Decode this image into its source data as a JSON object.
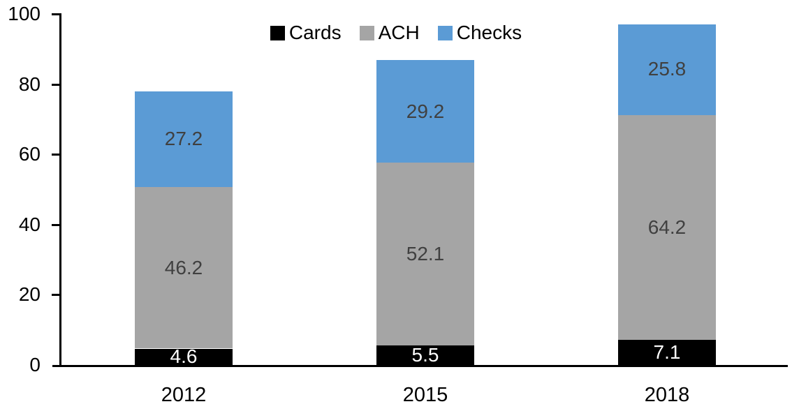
{
  "chart_data": {
    "type": "bar",
    "stacked": true,
    "title": "",
    "xlabel": "",
    "ylabel": "",
    "categories": [
      "2012",
      "2015",
      "2018"
    ],
    "series": [
      {
        "name": "Cards",
        "color": "#000000",
        "label_color": "#FFFFFF",
        "values": [
          4.6,
          5.5,
          7.1
        ]
      },
      {
        "name": "ACH",
        "color": "#A5A5A5",
        "label_color": "#404040",
        "values": [
          46.2,
          52.1,
          64.2
        ]
      },
      {
        "name": "Checks",
        "color": "#5B9BD5",
        "label_color": "#404040",
        "values": [
          27.2,
          29.2,
          25.8
        ]
      }
    ],
    "stack_totals": [
      78.0,
      86.8,
      97.1
    ],
    "ylim": [
      0,
      100
    ],
    "yticks": [
      0,
      20,
      40,
      60,
      80,
      100
    ],
    "grid": false,
    "legend_position": "top-center",
    "axis_color": "#000000",
    "background_color": "#FFFFFF"
  }
}
